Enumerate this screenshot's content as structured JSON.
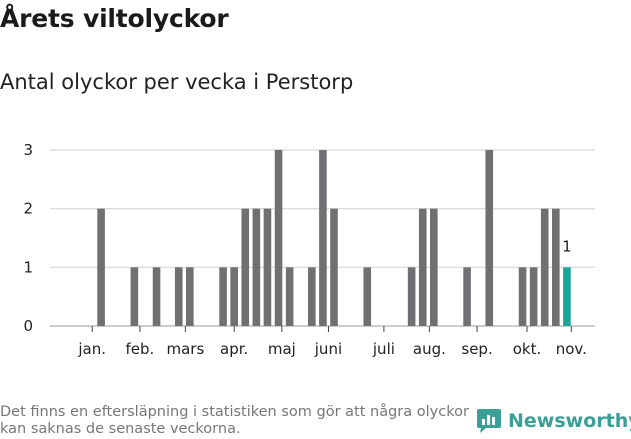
{
  "header": {
    "title": "Årets viltolyckor",
    "subtitle": "Antal olyckor per vecka i Perstorp"
  },
  "footer": {
    "note": "Det finns en eftersläpning i statistiken som gör att några olyckor kan saknas de senaste veckorna.",
    "brand": "Newsworthy"
  },
  "colors": {
    "bar": "#706f72",
    "highlight": "#1aa59a",
    "grid": "#d6d6d6",
    "brand": "#3a9f96"
  },
  "chart_data": {
    "type": "bar",
    "title": "Antal olyckor per vecka i Perstorp",
    "xlabel": "",
    "ylabel": "",
    "ylim": [
      0,
      3
    ],
    "yticks": [
      0,
      1,
      2,
      3
    ],
    "grid": true,
    "weeks": [
      1,
      2,
      3,
      4,
      5,
      6,
      7,
      8,
      9,
      10,
      11,
      12,
      13,
      14,
      15,
      16,
      17,
      18,
      19,
      20,
      21,
      22,
      23,
      24,
      25,
      26,
      27,
      28,
      29,
      30,
      31,
      32,
      33,
      34,
      35,
      36,
      37,
      38,
      39,
      40,
      41,
      42,
      43,
      44,
      45
    ],
    "values": [
      0,
      2,
      0,
      0,
      1,
      0,
      1,
      0,
      1,
      1,
      0,
      0,
      1,
      1,
      2,
      2,
      2,
      3,
      1,
      0,
      1,
      3,
      2,
      0,
      0,
      1,
      0,
      0,
      0,
      1,
      2,
      2,
      0,
      0,
      1,
      0,
      3,
      0,
      0,
      1,
      1,
      2,
      2,
      1,
      0
    ],
    "highlight_week": 44,
    "highlight_label": "1",
    "month_ticks": [
      {
        "label": "jan.",
        "week": 1.2
      },
      {
        "label": "feb.",
        "week": 5.5
      },
      {
        "label": "mars",
        "week": 9.6
      },
      {
        "label": "apr.",
        "week": 14.0
      },
      {
        "label": "maj",
        "week": 18.3
      },
      {
        "label": "juni",
        "week": 22.5
      },
      {
        "label": "juli",
        "week": 27.5
      },
      {
        "label": "aug.",
        "week": 31.6
      },
      {
        "label": "sep.",
        "week": 35.9
      },
      {
        "label": "okt.",
        "week": 40.4
      },
      {
        "label": "nov.",
        "week": 44.4
      }
    ]
  }
}
